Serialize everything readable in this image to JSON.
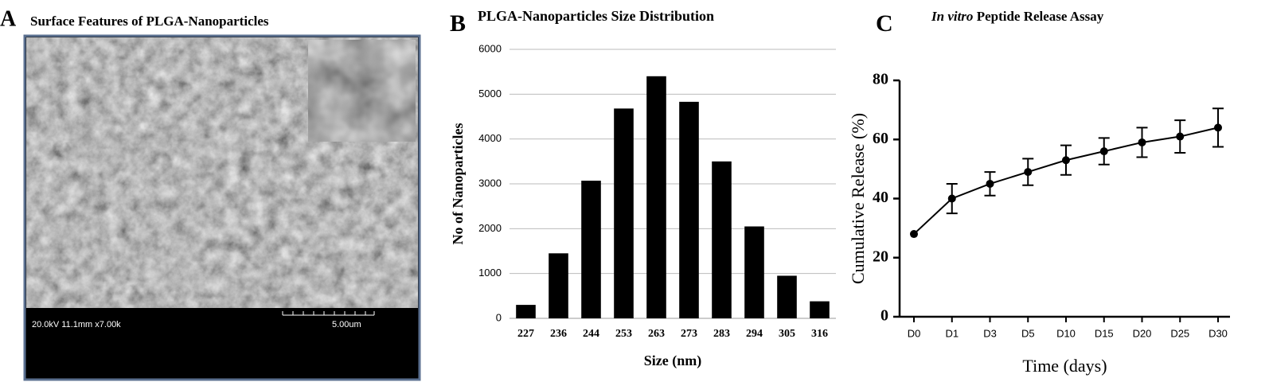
{
  "panel_a": {
    "label": "A",
    "title": "Surface Features of PLGA-Nanoparticles",
    "info": "20.0kV 11.1mm x7.00k",
    "scale": "5.00um"
  },
  "chart_data": [
    {
      "type": "bar",
      "label": "B",
      "title": "PLGA-Nanoparticles  Size Distribution",
      "x_label": "Size (nm)",
      "y_label": "No of Nanoparticles",
      "categories": [
        "227",
        "236",
        "244",
        "253",
        "263",
        "273",
        "283",
        "294",
        "305",
        "316"
      ],
      "values": [
        300,
        1450,
        3070,
        4680,
        5400,
        4830,
        3500,
        2050,
        950,
        380
      ],
      "color": "#000000",
      "ylim": [
        0,
        6000
      ],
      "yticks": [
        0,
        1000,
        2000,
        3000,
        4000,
        5000,
        6000
      ],
      "grid": true
    },
    {
      "type": "line",
      "label": "C",
      "title_prefix": "In vitro",
      "title": "Peptide  Release Assay",
      "x_label": "Time (days)",
      "y_label": "Cumulative  Release  (%)",
      "categories": [
        "D0",
        "D1",
        "D3",
        "D5",
        "D10",
        "D15",
        "D20",
        "D25",
        "D30"
      ],
      "values": [
        28,
        40,
        45,
        49,
        53,
        56,
        59,
        61,
        64
      ],
      "errors": [
        0,
        5,
        4,
        4.5,
        5,
        4.5,
        5,
        5.5,
        6.5
      ],
      "color": "#000000",
      "ylim": [
        0,
        80
      ],
      "yticks": [
        0,
        20,
        40,
        60,
        80
      ],
      "grid": false
    }
  ]
}
